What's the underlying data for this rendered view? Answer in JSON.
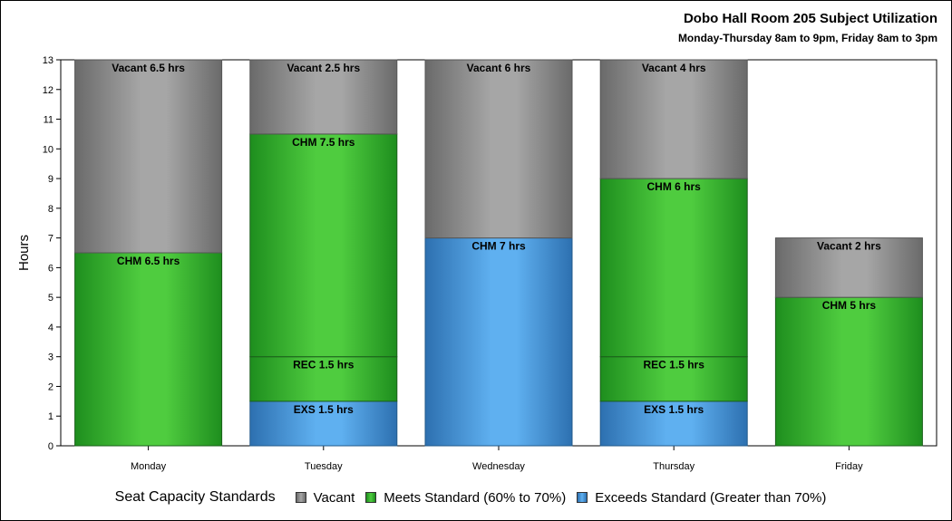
{
  "chart_data": {
    "type": "bar",
    "stacked": true,
    "title": "Dobo Hall Room 205 Subject Utilization",
    "subtitle": "Monday-Thursday 8am to 9pm, Friday 8am to 3pm",
    "ylabel": "Hours",
    "xlabel": "",
    "ylim": [
      0,
      13
    ],
    "yticks": [
      "0",
      "1",
      "2",
      "3",
      "4",
      "5",
      "6",
      "7",
      "8",
      "9",
      "10",
      "11",
      "12",
      "13"
    ],
    "categories": [
      "Monday",
      "Tuesday",
      "Wednesday",
      "Thursday",
      "Friday"
    ],
    "bars": [
      {
        "category": "Monday",
        "segments": [
          {
            "status": "meets",
            "label": "CHM 6.5 hrs",
            "value": 6.5
          },
          {
            "status": "vacant",
            "label": "Vacant 6.5 hrs",
            "value": 6.5
          }
        ]
      },
      {
        "category": "Tuesday",
        "segments": [
          {
            "status": "exceeds",
            "label": "EXS 1.5 hrs",
            "value": 1.5
          },
          {
            "status": "meets",
            "label": "REC 1.5 hrs",
            "value": 1.5
          },
          {
            "status": "meets",
            "label": "CHM 7.5 hrs",
            "value": 7.5
          },
          {
            "status": "vacant",
            "label": "Vacant 2.5 hrs",
            "value": 2.5
          }
        ]
      },
      {
        "category": "Wednesday",
        "segments": [
          {
            "status": "exceeds",
            "label": "CHM 7 hrs",
            "value": 7
          },
          {
            "status": "vacant",
            "label": "Vacant 6 hrs",
            "value": 6
          }
        ]
      },
      {
        "category": "Thursday",
        "segments": [
          {
            "status": "exceeds",
            "label": "EXS 1.5 hrs",
            "value": 1.5
          },
          {
            "status": "meets",
            "label": "REC 1.5 hrs",
            "value": 1.5
          },
          {
            "status": "meets",
            "label": "CHM 6 hrs",
            "value": 6
          },
          {
            "status": "vacant",
            "label": "Vacant 4 hrs",
            "value": 4
          }
        ]
      },
      {
        "category": "Friday",
        "segments": [
          {
            "status": "meets",
            "label": "CHM 5 hrs",
            "value": 5
          },
          {
            "status": "vacant",
            "label": "Vacant 2 hrs",
            "value": 2
          }
        ]
      }
    ],
    "legend": {
      "title": "Seat Capacity Standards",
      "placement": "bottom",
      "items": [
        {
          "key": "vacant",
          "label": "Vacant"
        },
        {
          "key": "meets",
          "label": "Meets Standard (60% to 70%)"
        },
        {
          "key": "exceeds",
          "label": "Exceeds Standard (Greater than 70%)"
        }
      ]
    },
    "colors": {
      "vacant": {
        "light": "#a6a6a6",
        "dark": "#6a6a6a",
        "edge": "#555555"
      },
      "meets": {
        "light": "#4fcc3f",
        "dark": "#1e8e1e",
        "edge": "#1a5f1a"
      },
      "exceeds": {
        "light": "#5fb0f0",
        "dark": "#2d70b0",
        "edge": "#225a8a"
      }
    }
  }
}
